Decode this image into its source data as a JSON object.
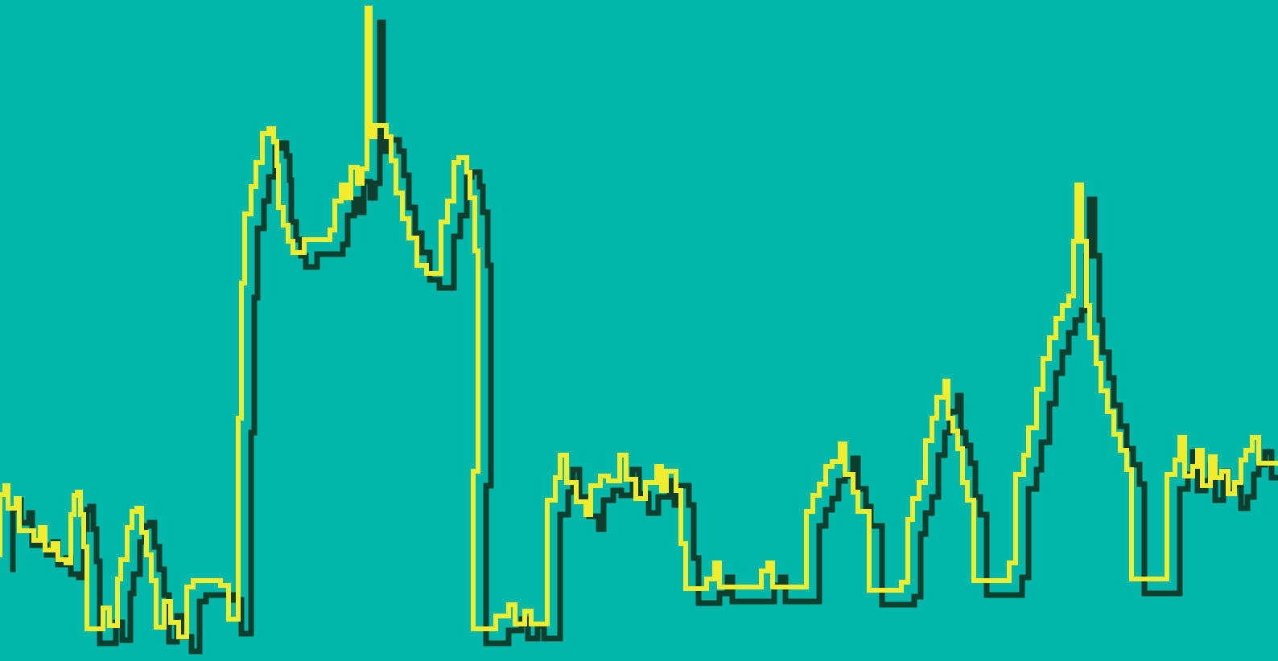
{
  "scene": {
    "subject": "skyline-outline-illustration",
    "colors": {
      "background": "#00B8AA",
      "outline_front": "#F2EC2C",
      "outline_back": "#0E3F2E"
    }
  }
}
